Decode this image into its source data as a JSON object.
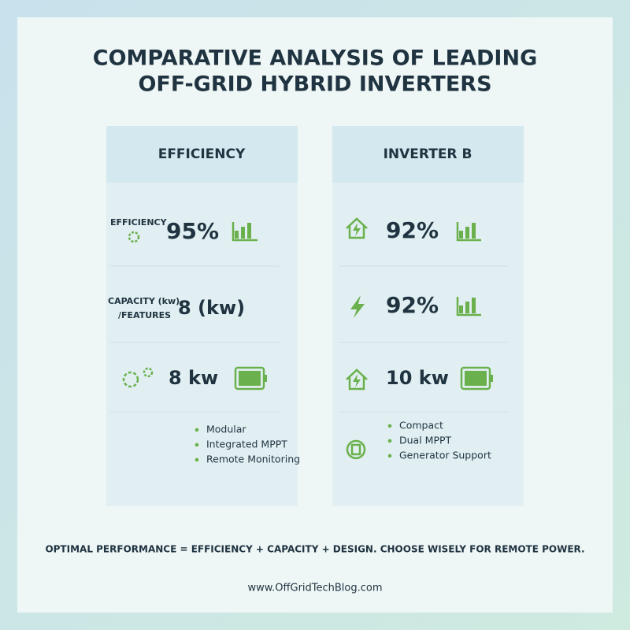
{
  "header": {
    "title_lines": [
      "COMPARATIVE ANALYSIS OF LEADING",
      "OFF-GRID HYBRID INVERTERS"
    ]
  },
  "columns": [
    {
      "header": "EFFICIENCY",
      "rows": [
        {
          "label_lines": [
            "EFFICIENCY"
          ],
          "value": "95%"
        },
        {
          "label_lines": [
            "CAPACITY (kw)",
            "/FEATURES"
          ],
          "value": "8 (kw)"
        },
        {
          "value": "8 kw"
        }
      ],
      "features": [
        "Modular",
        "Integrated MPPT",
        "Remote Monitoring"
      ]
    },
    {
      "header": "INVERTER B",
      "rows": [
        {
          "value": "92%"
        },
        {
          "value": "92%"
        },
        {
          "value": "10 kw"
        }
      ],
      "features": [
        "Compact",
        "Dual MPPT",
        "Generator Support"
      ]
    }
  ],
  "footer": {
    "note": "OPTIMAL PERFORMANCE = EFFICIENCY + CAPACITY + DESIGN. CHOOSE WISELY FOR REMOTE POWER.",
    "url": "www.OffGridTechBlog.com"
  }
}
